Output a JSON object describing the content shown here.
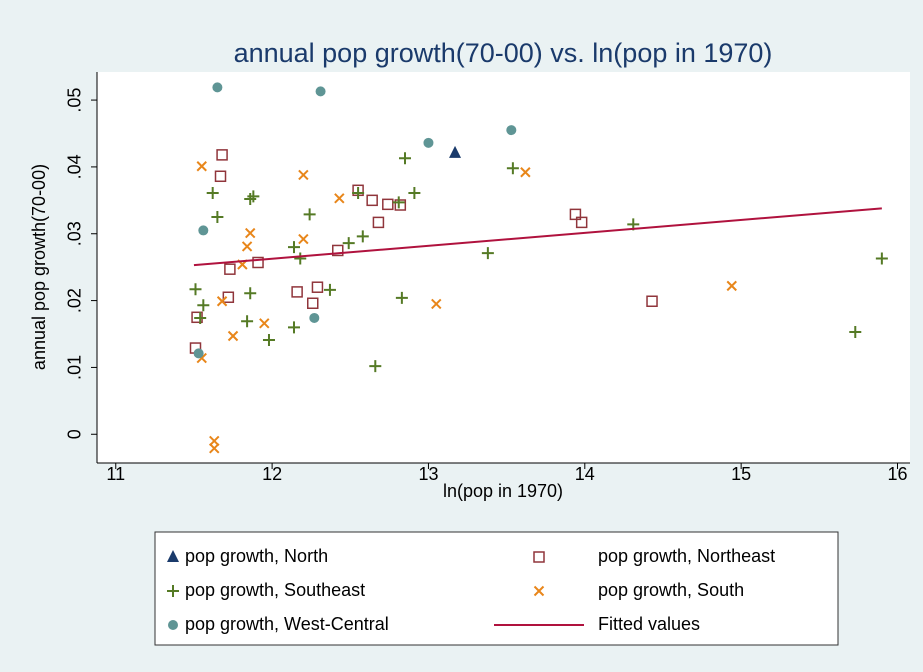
{
  "chart_data": {
    "type": "scatter",
    "title": "annual pop growth(70-00) vs. ln(pop in 1970)",
    "x_label": "ln(pop in 1970)",
    "y_label": "annual pop growth(70-00)",
    "xlim": [
      10.88,
      16.08
    ],
    "ylim": [
      -0.0043,
      0.0542
    ],
    "xticks": [
      11,
      12,
      13,
      14,
      15,
      16
    ],
    "yticks": [
      0,
      {
        "value": 0.01,
        "label": ".01"
      },
      {
        "value": 0.02,
        "label": ".02"
      },
      {
        "value": 0.03,
        "label": ".03"
      },
      {
        "value": 0.04,
        "label": ".04"
      },
      {
        "value": 0.05,
        "label": ".05"
      }
    ],
    "series": [
      {
        "name": "pop growth, North",
        "color": "#1a3a6b",
        "marker": "triangle",
        "x": [
          13.17
        ],
        "values": [
          0.0421
        ]
      },
      {
        "name": "pop growth, Northeast",
        "color": "#90353b",
        "marker": "square",
        "x": [
          11.68,
          11.67,
          12.55,
          12.64,
          12.74,
          12.82,
          12.68,
          13.94,
          13.98,
          11.73,
          11.91,
          12.42,
          12.29,
          12.16,
          12.26,
          11.72,
          11.52,
          11.51,
          14.43
        ],
        "values": [
          0.0418,
          0.0386,
          0.0365,
          0.035,
          0.0344,
          0.0343,
          0.0317,
          0.0329,
          0.0317,
          0.0247,
          0.0257,
          0.0275,
          0.022,
          0.0213,
          0.0196,
          0.0205,
          0.0175,
          0.0129,
          0.0199
        ]
      },
      {
        "name": "pop growth, Southeast",
        "color": "#557a25",
        "marker": "plus",
        "x": [
          11.62,
          11.65,
          11.86,
          11.88,
          12.85,
          12.55,
          12.91,
          12.24,
          12.58,
          12.49,
          12.14,
          12.18,
          13.54,
          13.38,
          14.31,
          11.51,
          11.56,
          11.54,
          11.86,
          11.84,
          11.98,
          12.14,
          12.37,
          12.83,
          12.66,
          15.73,
          15.9,
          12.81
        ],
        "values": [
          0.0361,
          0.0325,
          0.0352,
          0.0356,
          0.0413,
          0.0361,
          0.0361,
          0.0329,
          0.0296,
          0.0286,
          0.028,
          0.0263,
          0.0398,
          0.0271,
          0.0314,
          0.0217,
          0.0193,
          0.0174,
          0.0211,
          0.0169,
          0.0141,
          0.016,
          0.0216,
          0.0204,
          0.0102,
          0.0153,
          0.0263,
          0.0347
        ]
      },
      {
        "name": "pop growth, South",
        "color": "#e8861a",
        "marker": "x",
        "x": [
          11.55,
          12.2,
          12.43,
          13.62,
          11.86,
          11.84,
          11.81,
          12.2,
          11.68,
          11.95,
          11.75,
          11.55,
          13.05,
          14.94,
          11.63,
          11.63
        ],
        "values": [
          0.0401,
          0.0388,
          0.0353,
          0.0392,
          0.0301,
          0.0281,
          0.0254,
          0.0292,
          0.0199,
          0.0166,
          0.0147,
          0.0114,
          0.0195,
          0.0222,
          -0.001,
          -0.0021
        ]
      },
      {
        "name": "pop growth, West-Central",
        "color": "#5f9595",
        "marker": "circle",
        "x": [
          11.65,
          12.31,
          13.0,
          13.53,
          11.56,
          12.27,
          11.53
        ],
        "values": [
          0.0519,
          0.0513,
          0.0436,
          0.0455,
          0.0305,
          0.0174,
          0.0121
        ]
      },
      {
        "name": "Fitted values",
        "color": "#b0123e",
        "type": "line",
        "x": [
          11.5,
          15.9
        ],
        "values": [
          0.0253,
          0.0338
        ]
      }
    ]
  }
}
